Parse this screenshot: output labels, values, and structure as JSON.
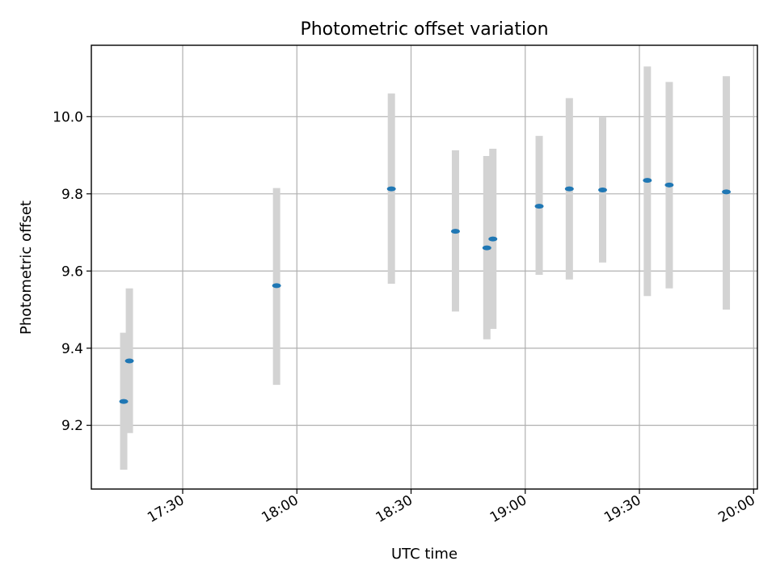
{
  "chart_data": {
    "type": "scatter",
    "title": "Photometric offset variation",
    "xlabel": "UTC time",
    "ylabel": "Photometric offset",
    "x_range": [
      "17:06",
      "20:01"
    ],
    "ylim": [
      9.035,
      10.185
    ],
    "x_ticks": [
      "17:30",
      "18:00",
      "18:30",
      "19:00",
      "19:30",
      "20:00"
    ],
    "y_ticks": [
      9.2,
      9.4,
      9.6,
      9.8,
      10.0
    ],
    "y_tick_labels": [
      "9.2",
      "9.4",
      "9.6",
      "9.8",
      "10.0"
    ],
    "grid": true,
    "marker_color": "#1f77b4",
    "errorbar_color": "#d3d3d3",
    "points": [
      {
        "time": "17:14:30",
        "y": 9.262,
        "y_low": 9.085,
        "y_high": 9.44
      },
      {
        "time": "17:16:00",
        "y": 9.367,
        "y_low": 9.18,
        "y_high": 9.555
      },
      {
        "time": "17:54:40",
        "y": 9.562,
        "y_low": 9.305,
        "y_high": 9.815
      },
      {
        "time": "18:24:50",
        "y": 9.813,
        "y_low": 9.567,
        "y_high": 10.06
      },
      {
        "time": "18:41:40",
        "y": 9.703,
        "y_low": 9.495,
        "y_high": 9.913
      },
      {
        "time": "18:49:55",
        "y": 9.66,
        "y_low": 9.423,
        "y_high": 9.898
      },
      {
        "time": "18:51:30",
        "y": 9.683,
        "y_low": 9.45,
        "y_high": 9.917
      },
      {
        "time": "19:03:40",
        "y": 9.768,
        "y_low": 9.59,
        "y_high": 9.95
      },
      {
        "time": "19:11:35",
        "y": 9.813,
        "y_low": 9.578,
        "y_high": 10.048
      },
      {
        "time": "19:20:20",
        "y": 9.81,
        "y_low": 9.622,
        "y_high": 9.998
      },
      {
        "time": "19:32:05",
        "y": 9.835,
        "y_low": 9.535,
        "y_high": 10.13
      },
      {
        "time": "19:37:50",
        "y": 9.823,
        "y_low": 9.555,
        "y_high": 10.09
      },
      {
        "time": "19:52:50",
        "y": 9.805,
        "y_low": 9.5,
        "y_high": 10.105
      }
    ]
  }
}
